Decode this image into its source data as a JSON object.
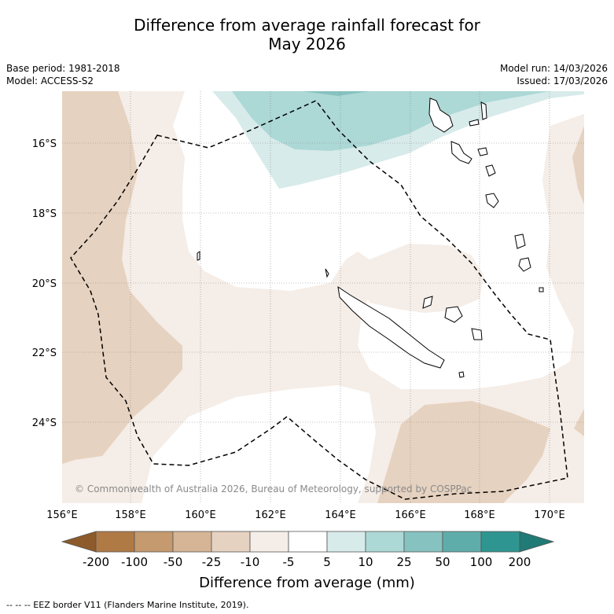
{
  "title_line1": "Difference from average rainfall forecast for",
  "title_line2": "May 2026",
  "base_period": "Base period: 1981-2018",
  "model": "Model: ACCESS-S2",
  "model_run": "Model run: 14/03/2026",
  "issued": "Issued: 17/03/2026",
  "copyright": "© Commonwealth of Australia 2026, Bureau of Meteorology, supported by COSPPac",
  "lat_ticks": [
    "16°S",
    "18°S",
    "20°S",
    "22°S",
    "24°S"
  ],
  "lon_ticks": [
    "156°E",
    "158°E",
    "160°E",
    "162°E",
    "164°E",
    "166°E",
    "168°E",
    "170°E"
  ],
  "colorbar": {
    "title": "Difference from average (mm)",
    "labels": [
      "-200",
      "-100",
      "-50",
      "-25",
      "-10",
      "-5",
      "5",
      "10",
      "25",
      "50",
      "100",
      "200"
    ],
    "colors": [
      "#8c5a2b",
      "#b07a45",
      "#c49a6e",
      "#d6b596",
      "#e6d2c0",
      "#f5ede7",
      "#ffffff",
      "#d7ebea",
      "#acd8d6",
      "#86c2c0",
      "#5fadab",
      "#2f9590",
      "#207a75"
    ]
  },
  "footer": "--  --  -- EEZ border V11 (Flanders Marine Institute, 2019)."
}
